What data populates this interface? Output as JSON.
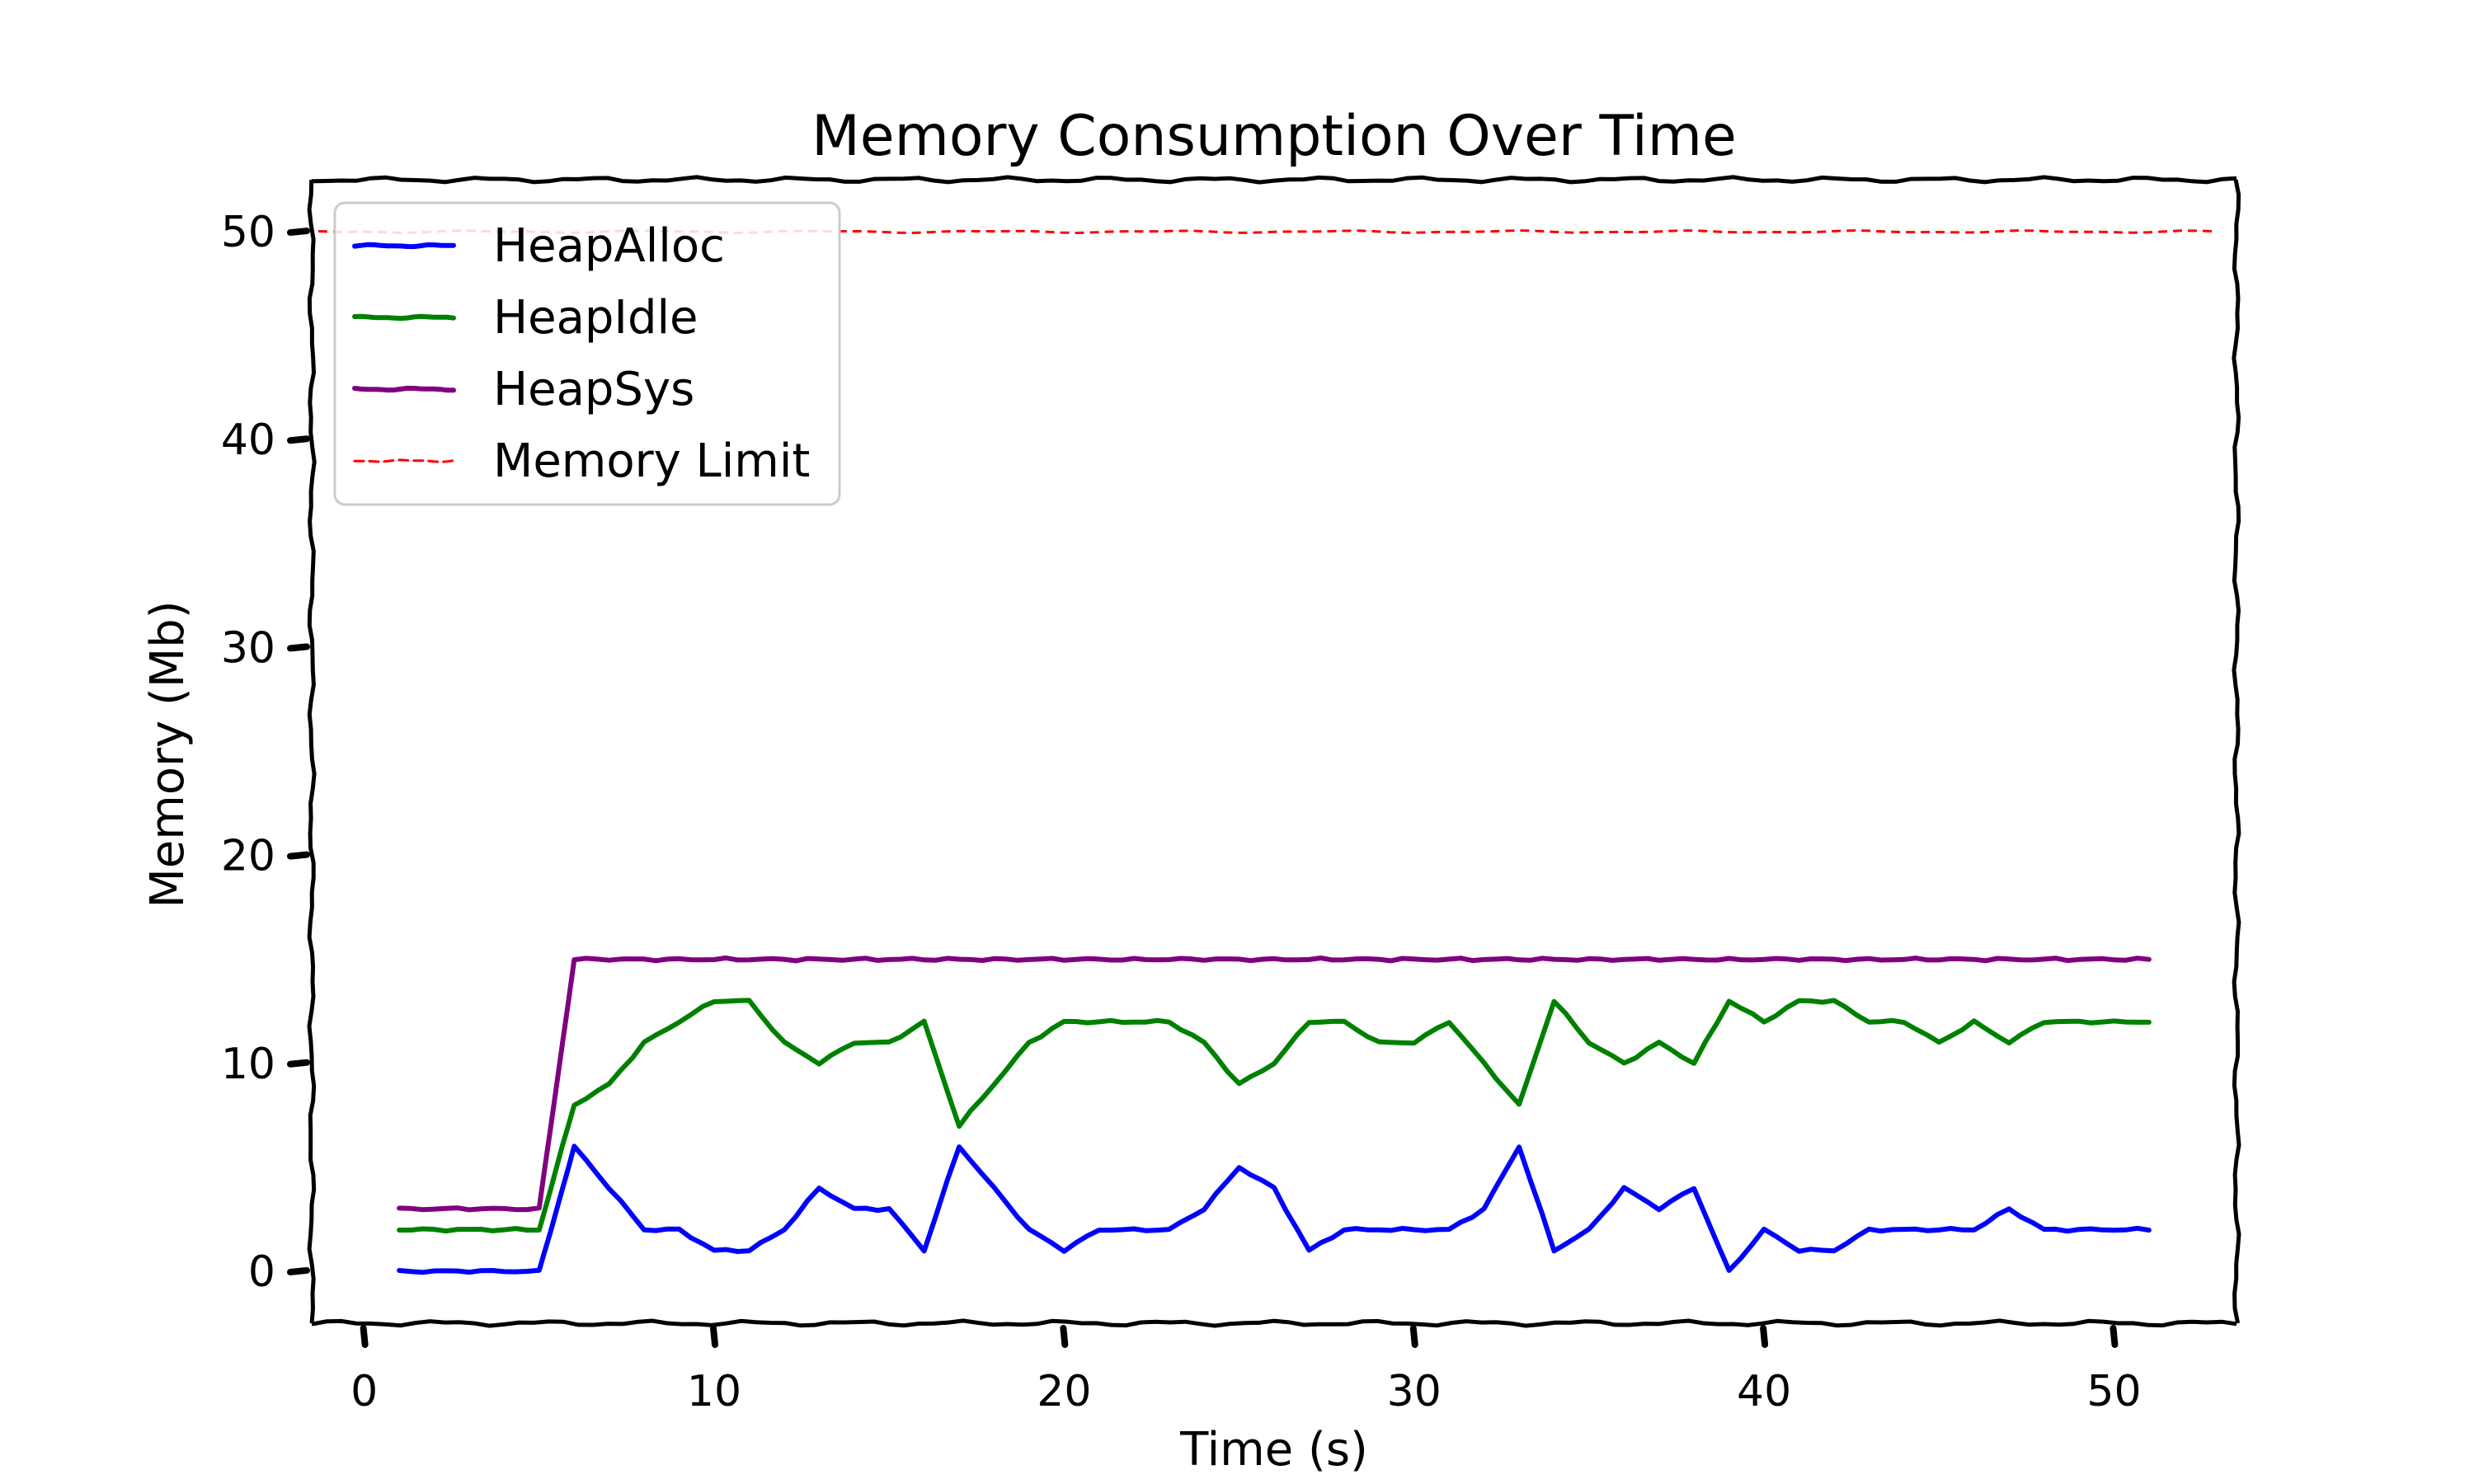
{
  "chart_data": {
    "type": "line",
    "title": "Memory Consumption Over Time",
    "xlabel": "Time (s)",
    "ylabel": "Memory (Mb)",
    "xlim": [
      -1.5,
      53.5
    ],
    "ylim": [
      -2.5,
      52.5
    ],
    "xticks": [
      0,
      10,
      20,
      30,
      40,
      50
    ],
    "yticks": [
      0,
      10,
      20,
      30,
      40,
      50
    ],
    "grid": false,
    "legend_position": "top-left",
    "style": "xkcd",
    "x": [
      1,
      2,
      3,
      4,
      5,
      5.5,
      6,
      7,
      8,
      9,
      10,
      11,
      12,
      13,
      14,
      15,
      16,
      17,
      18,
      19,
      20,
      21,
      22,
      23,
      24,
      25,
      26,
      27,
      28,
      29,
      30,
      31,
      32,
      33,
      34,
      35,
      36,
      37,
      38,
      39,
      40,
      41,
      42,
      43,
      44,
      45,
      46,
      47,
      48,
      49,
      50,
      51
    ],
    "series": [
      {
        "name": "HeapAlloc",
        "color": "#0000ff",
        "values": [
          0,
          0,
          0,
          0,
          0,
          3,
          6,
          4,
          2,
          2,
          1,
          1,
          2,
          4,
          3,
          3,
          1,
          6,
          4,
          2,
          1,
          2,
          2,
          2,
          3,
          5,
          4,
          1,
          2,
          2,
          2,
          2,
          3,
          6,
          1,
          2,
          4,
          3,
          4,
          0,
          2,
          1,
          1,
          2,
          2,
          2,
          2,
          3,
          2,
          2,
          2,
          2
        ]
      },
      {
        "name": "HeapIdle",
        "color": "#008000",
        "values": [
          2,
          2,
          2,
          2,
          2,
          5,
          8,
          9,
          11,
          12,
          13,
          13,
          11,
          10,
          11,
          11,
          12,
          7,
          9,
          11,
          12,
          12,
          12,
          12,
          11,
          9,
          10,
          12,
          12,
          11,
          11,
          12,
          10,
          8,
          13,
          11,
          10,
          11,
          10,
          13,
          12,
          13,
          13,
          12,
          12,
          11,
          12,
          11,
          12,
          12,
          12,
          12
        ]
      },
      {
        "name": "HeapSys",
        "color": "#800080",
        "values": [
          3,
          3,
          3,
          3,
          3,
          9,
          15,
          15,
          15,
          15,
          15,
          15,
          15,
          15,
          15,
          15,
          15,
          15,
          15,
          15,
          15,
          15,
          15,
          15,
          15,
          15,
          15,
          15,
          15,
          15,
          15,
          15,
          15,
          15,
          15,
          15,
          15,
          15,
          15,
          15,
          15,
          15,
          15,
          15,
          15,
          15,
          15,
          15,
          15,
          15,
          15,
          15
        ]
      }
    ],
    "limit_line": {
      "name": "Memory Limit",
      "color": "#ff0000",
      "value": 50
    }
  }
}
